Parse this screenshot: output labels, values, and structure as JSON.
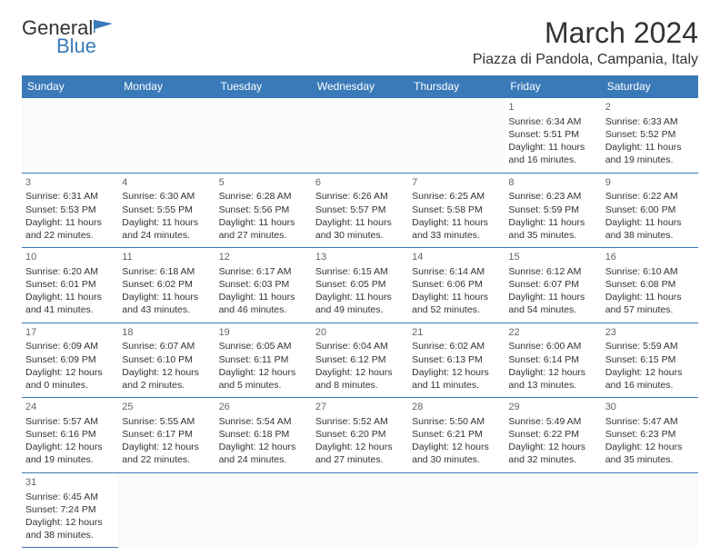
{
  "logo": {
    "general": "General",
    "blue": "Blue",
    "flag_color": "#3a7ab8"
  },
  "header": {
    "title": "March 2024",
    "location": "Piazza di Pandola, Campania, Italy"
  },
  "colors": {
    "header_bg": "#3a7ab8",
    "header_text": "#ffffff",
    "border": "#3a7ab8",
    "text": "#333333",
    "day_num": "#666666",
    "background": "#ffffff"
  },
  "weekdays": [
    "Sunday",
    "Monday",
    "Tuesday",
    "Wednesday",
    "Thursday",
    "Friday",
    "Saturday"
  ],
  "days": [
    {
      "weekday": 5,
      "num": "1",
      "sunrise": "Sunrise: 6:34 AM",
      "sunset": "Sunset: 5:51 PM",
      "daylight": "Daylight: 11 hours and 16 minutes."
    },
    {
      "weekday": 6,
      "num": "2",
      "sunrise": "Sunrise: 6:33 AM",
      "sunset": "Sunset: 5:52 PM",
      "daylight": "Daylight: 11 hours and 19 minutes."
    },
    {
      "weekday": 0,
      "num": "3",
      "sunrise": "Sunrise: 6:31 AM",
      "sunset": "Sunset: 5:53 PM",
      "daylight": "Daylight: 11 hours and 22 minutes."
    },
    {
      "weekday": 1,
      "num": "4",
      "sunrise": "Sunrise: 6:30 AM",
      "sunset": "Sunset: 5:55 PM",
      "daylight": "Daylight: 11 hours and 24 minutes."
    },
    {
      "weekday": 2,
      "num": "5",
      "sunrise": "Sunrise: 6:28 AM",
      "sunset": "Sunset: 5:56 PM",
      "daylight": "Daylight: 11 hours and 27 minutes."
    },
    {
      "weekday": 3,
      "num": "6",
      "sunrise": "Sunrise: 6:26 AM",
      "sunset": "Sunset: 5:57 PM",
      "daylight": "Daylight: 11 hours and 30 minutes."
    },
    {
      "weekday": 4,
      "num": "7",
      "sunrise": "Sunrise: 6:25 AM",
      "sunset": "Sunset: 5:58 PM",
      "daylight": "Daylight: 11 hours and 33 minutes."
    },
    {
      "weekday": 5,
      "num": "8",
      "sunrise": "Sunrise: 6:23 AM",
      "sunset": "Sunset: 5:59 PM",
      "daylight": "Daylight: 11 hours and 35 minutes."
    },
    {
      "weekday": 6,
      "num": "9",
      "sunrise": "Sunrise: 6:22 AM",
      "sunset": "Sunset: 6:00 PM",
      "daylight": "Daylight: 11 hours and 38 minutes."
    },
    {
      "weekday": 0,
      "num": "10",
      "sunrise": "Sunrise: 6:20 AM",
      "sunset": "Sunset: 6:01 PM",
      "daylight": "Daylight: 11 hours and 41 minutes."
    },
    {
      "weekday": 1,
      "num": "11",
      "sunrise": "Sunrise: 6:18 AM",
      "sunset": "Sunset: 6:02 PM",
      "daylight": "Daylight: 11 hours and 43 minutes."
    },
    {
      "weekday": 2,
      "num": "12",
      "sunrise": "Sunrise: 6:17 AM",
      "sunset": "Sunset: 6:03 PM",
      "daylight": "Daylight: 11 hours and 46 minutes."
    },
    {
      "weekday": 3,
      "num": "13",
      "sunrise": "Sunrise: 6:15 AM",
      "sunset": "Sunset: 6:05 PM",
      "daylight": "Daylight: 11 hours and 49 minutes."
    },
    {
      "weekday": 4,
      "num": "14",
      "sunrise": "Sunrise: 6:14 AM",
      "sunset": "Sunset: 6:06 PM",
      "daylight": "Daylight: 11 hours and 52 minutes."
    },
    {
      "weekday": 5,
      "num": "15",
      "sunrise": "Sunrise: 6:12 AM",
      "sunset": "Sunset: 6:07 PM",
      "daylight": "Daylight: 11 hours and 54 minutes."
    },
    {
      "weekday": 6,
      "num": "16",
      "sunrise": "Sunrise: 6:10 AM",
      "sunset": "Sunset: 6:08 PM",
      "daylight": "Daylight: 11 hours and 57 minutes."
    },
    {
      "weekday": 0,
      "num": "17",
      "sunrise": "Sunrise: 6:09 AM",
      "sunset": "Sunset: 6:09 PM",
      "daylight": "Daylight: 12 hours and 0 minutes."
    },
    {
      "weekday": 1,
      "num": "18",
      "sunrise": "Sunrise: 6:07 AM",
      "sunset": "Sunset: 6:10 PM",
      "daylight": "Daylight: 12 hours and 2 minutes."
    },
    {
      "weekday": 2,
      "num": "19",
      "sunrise": "Sunrise: 6:05 AM",
      "sunset": "Sunset: 6:11 PM",
      "daylight": "Daylight: 12 hours and 5 minutes."
    },
    {
      "weekday": 3,
      "num": "20",
      "sunrise": "Sunrise: 6:04 AM",
      "sunset": "Sunset: 6:12 PM",
      "daylight": "Daylight: 12 hours and 8 minutes."
    },
    {
      "weekday": 4,
      "num": "21",
      "sunrise": "Sunrise: 6:02 AM",
      "sunset": "Sunset: 6:13 PM",
      "daylight": "Daylight: 12 hours and 11 minutes."
    },
    {
      "weekday": 5,
      "num": "22",
      "sunrise": "Sunrise: 6:00 AM",
      "sunset": "Sunset: 6:14 PM",
      "daylight": "Daylight: 12 hours and 13 minutes."
    },
    {
      "weekday": 6,
      "num": "23",
      "sunrise": "Sunrise: 5:59 AM",
      "sunset": "Sunset: 6:15 PM",
      "daylight": "Daylight: 12 hours and 16 minutes."
    },
    {
      "weekday": 0,
      "num": "24",
      "sunrise": "Sunrise: 5:57 AM",
      "sunset": "Sunset: 6:16 PM",
      "daylight": "Daylight: 12 hours and 19 minutes."
    },
    {
      "weekday": 1,
      "num": "25",
      "sunrise": "Sunrise: 5:55 AM",
      "sunset": "Sunset: 6:17 PM",
      "daylight": "Daylight: 12 hours and 22 minutes."
    },
    {
      "weekday": 2,
      "num": "26",
      "sunrise": "Sunrise: 5:54 AM",
      "sunset": "Sunset: 6:18 PM",
      "daylight": "Daylight: 12 hours and 24 minutes."
    },
    {
      "weekday": 3,
      "num": "27",
      "sunrise": "Sunrise: 5:52 AM",
      "sunset": "Sunset: 6:20 PM",
      "daylight": "Daylight: 12 hours and 27 minutes."
    },
    {
      "weekday": 4,
      "num": "28",
      "sunrise": "Sunrise: 5:50 AM",
      "sunset": "Sunset: 6:21 PM",
      "daylight": "Daylight: 12 hours and 30 minutes."
    },
    {
      "weekday": 5,
      "num": "29",
      "sunrise": "Sunrise: 5:49 AM",
      "sunset": "Sunset: 6:22 PM",
      "daylight": "Daylight: 12 hours and 32 minutes."
    },
    {
      "weekday": 6,
      "num": "30",
      "sunrise": "Sunrise: 5:47 AM",
      "sunset": "Sunset: 6:23 PM",
      "daylight": "Daylight: 12 hours and 35 minutes."
    },
    {
      "weekday": 0,
      "num": "31",
      "sunrise": "Sunrise: 6:45 AM",
      "sunset": "Sunset: 7:24 PM",
      "daylight": "Daylight: 12 hours and 38 minutes."
    }
  ]
}
